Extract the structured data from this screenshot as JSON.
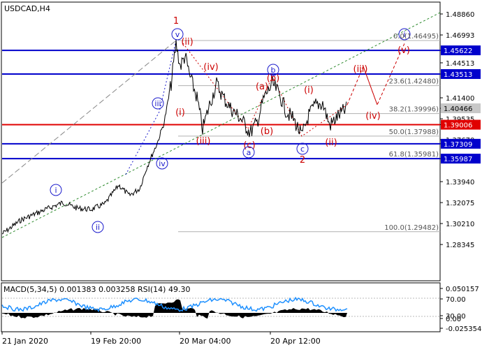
{
  "chart_title": "USDCAD,H4",
  "colors": {
    "background": "#ffffff",
    "frame": "#000000",
    "price_line": "#000000",
    "blue_level": "#0000cc",
    "red_level": "#e00000",
    "fib_line": "#b0b0b0",
    "wave_red": "#cc0000",
    "wave_blue": "#1a1acc",
    "trend_channel": "#2e8b2e",
    "macd_hist": "#000000",
    "rsi_line": "#1e90ff",
    "tag_blue_bg": "#0000cc",
    "tag_red_bg": "#e00000",
    "tag_gray_bg": "#c8c8c8"
  },
  "price_axis": {
    "ticks": [
      "1.48860",
      "1.46993",
      "1.45622",
      "1.44513",
      "1.43513",
      "1.41400",
      "1.40466",
      "1.39535",
      "1.39006",
      "1.37670",
      "1.37309",
      "1.35987",
      "1.33940",
      "1.32075",
      "1.30210",
      "1.28345"
    ]
  },
  "tagged_levels": [
    {
      "label": "1.45622",
      "kind": "blue"
    },
    {
      "label": "1.43513",
      "kind": "blue"
    },
    {
      "label": "1.40466",
      "kind": "gray"
    },
    {
      "label": "1.39006",
      "kind": "red"
    },
    {
      "label": "1.37309",
      "kind": "blue"
    },
    {
      "label": "1.35987",
      "kind": "blue"
    }
  ],
  "fib_labels": [
    {
      "text": "0.0(1.46495)"
    },
    {
      "text": "23.6(1.42480)"
    },
    {
      "text": "38.2(1.39996)"
    },
    {
      "text": "50.0(1.37988)"
    },
    {
      "text": "61.8(1.35981)"
    },
    {
      "text": "100.0(1.29482)"
    }
  ],
  "indicator": {
    "label": "MACD(5,34,5) 0.001383 0.003258 RSI(14) 49.30",
    "axis_ticks": [
      "0.050157",
      "70.00",
      "30.00",
      "0.00",
      "-0.025354"
    ]
  },
  "time_axis": {
    "labels": [
      "21 Jan 2020",
      "19 Feb 20:00",
      "20 Mar 04:00",
      "20 Apr 12:00"
    ]
  },
  "wave_labels": {
    "red": [
      "1",
      "(ii)",
      "(iv)",
      "(i)",
      "(iii)",
      "(a)",
      "(b)",
      "(b)",
      "(c)",
      "(i)",
      "2",
      "(ii)",
      "(iii)",
      "(iv)",
      "(v)"
    ],
    "blue_circled": [
      "i",
      "ii",
      "iii",
      "iv",
      "v",
      "a",
      "b",
      "c",
      "i"
    ]
  }
}
